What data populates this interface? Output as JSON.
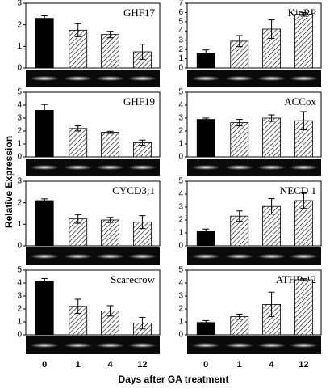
{
  "ylabel": "Relative Expression",
  "xlabel": "Days after GA treatment",
  "categories": [
    "0",
    "1",
    "4",
    "12"
  ],
  "chart_data": [
    {
      "type": "bar",
      "title": "GHF17",
      "values": [
        2.3,
        1.75,
        1.55,
        0.75
      ],
      "errors": [
        0.12,
        0.3,
        0.15,
        0.35
      ],
      "ylim": [
        0,
        3
      ],
      "yticks": [
        0,
        1,
        2,
        3
      ]
    },
    {
      "type": "bar",
      "title": "KipRP",
      "values": [
        1.6,
        2.9,
        4.2,
        5.8
      ],
      "errors": [
        0.35,
        0.6,
        1.0,
        0.2
      ],
      "ylim": [
        0,
        7
      ],
      "yticks": [
        0,
        1,
        2,
        3,
        4,
        5,
        6,
        7
      ]
    },
    {
      "type": "bar",
      "title": "GHF19",
      "values": [
        3.6,
        2.2,
        1.9,
        1.1
      ],
      "errors": [
        0.45,
        0.2,
        0.08,
        0.2
      ],
      "ylim": [
        0,
        5
      ],
      "yticks": [
        0,
        1,
        2,
        3,
        4,
        5
      ]
    },
    {
      "type": "bar",
      "title": "ACCox",
      "values": [
        2.9,
        2.65,
        3.0,
        2.8
      ],
      "errors": [
        0.1,
        0.25,
        0.25,
        0.7
      ],
      "ylim": [
        0,
        5
      ],
      "yticks": [
        0,
        1,
        2,
        3,
        4,
        5
      ]
    },
    {
      "type": "bar",
      "title": "CYCD3;1",
      "values": [
        2.1,
        1.25,
        1.2,
        1.1
      ],
      "errors": [
        0.08,
        0.2,
        0.12,
        0.3
      ],
      "ylim": [
        0,
        3
      ],
      "yticks": [
        0,
        1,
        2,
        3
      ]
    },
    {
      "type": "bar",
      "title": "NECD 1",
      "values": [
        1.1,
        2.3,
        3.05,
        3.5
      ],
      "errors": [
        0.2,
        0.4,
        0.6,
        0.6
      ],
      "ylim": [
        0,
        5
      ],
      "yticks": [
        0,
        1,
        2,
        3,
        4,
        5
      ]
    },
    {
      "type": "bar",
      "title": "Scarecrow",
      "values": [
        4.15,
        2.2,
        1.85,
        0.9
      ],
      "errors": [
        0.2,
        0.55,
        0.4,
        0.45
      ],
      "ylim": [
        0,
        5
      ],
      "yticks": [
        0,
        1,
        2,
        3,
        4,
        5
      ]
    },
    {
      "type": "bar",
      "title": "ATHB 12",
      "values": [
        0.95,
        1.4,
        2.35,
        4.25
      ],
      "errors": [
        0.15,
        0.2,
        0.95,
        0.08
      ],
      "ylim": [
        0,
        5
      ],
      "yticks": [
        0,
        1,
        2,
        3,
        4,
        5
      ]
    }
  ]
}
